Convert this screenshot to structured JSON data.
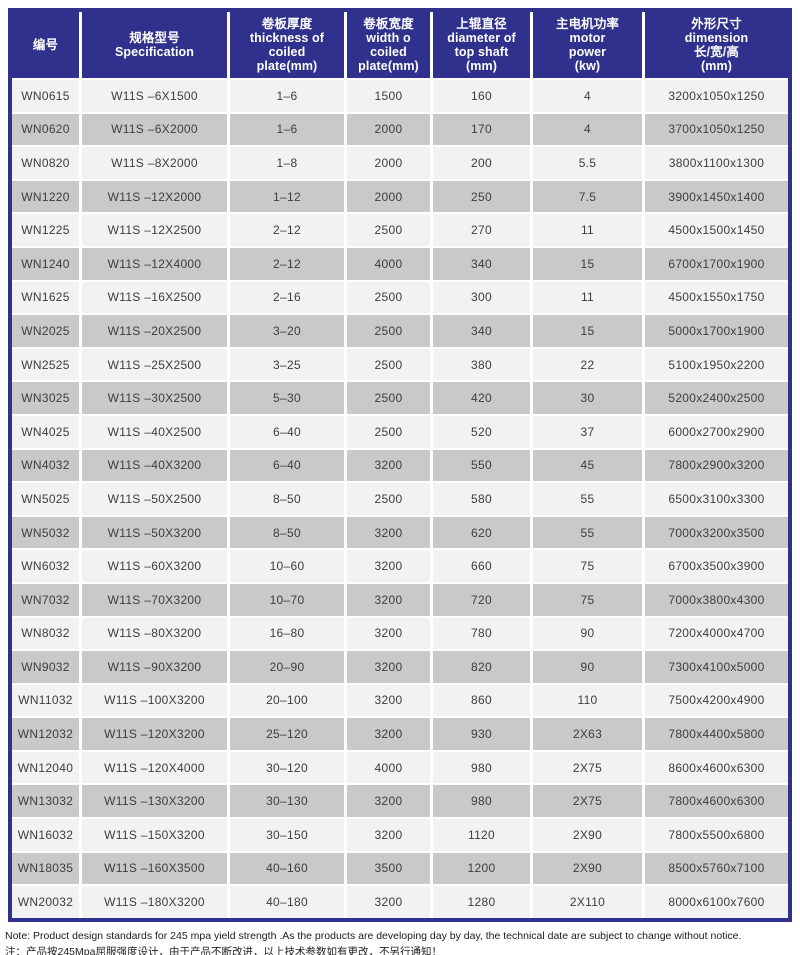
{
  "table": {
    "columns": [
      {
        "key": "id",
        "label": "编号"
      },
      {
        "key": "spec",
        "label": "规格型号\nSpecification"
      },
      {
        "key": "thickness",
        "label": "卷板厚度\nthickness of\ncoiled\nplate(mm)"
      },
      {
        "key": "width",
        "label": "卷板宽度\nwidth o\ncoiled\nplate(mm)"
      },
      {
        "key": "diameter",
        "label": "上辊直径\ndiameter of\ntop shaft\n(mm)"
      },
      {
        "key": "power",
        "label": "主电机功率\nmotor\npower\n(kw)"
      },
      {
        "key": "dimension",
        "label": "外形尺寸\ndimension\n长/宽/高\n(mm)"
      }
    ],
    "rows": [
      [
        "WN0615",
        "W11S –6X1500",
        "1–6",
        "1500",
        "160",
        "4",
        "3200x1050x1250"
      ],
      [
        "WN0620",
        "W11S –6X2000",
        "1–6",
        "2000",
        "170",
        "4",
        "3700x1050x1250"
      ],
      [
        "WN0820",
        "W11S –8X2000",
        "1–8",
        "2000",
        "200",
        "5.5",
        "3800x1100x1300"
      ],
      [
        "WN1220",
        "W11S –12X2000",
        "1–12",
        "2000",
        "250",
        "7.5",
        "3900x1450x1400"
      ],
      [
        "WN1225",
        "W11S –12X2500",
        "2–12",
        "2500",
        "270",
        "11",
        "4500x1500x1450"
      ],
      [
        "WN1240",
        "W11S –12X4000",
        "2–12",
        "4000",
        "340",
        "15",
        "6700x1700x1900"
      ],
      [
        "WN1625",
        "W11S –16X2500",
        "2–16",
        "2500",
        "300",
        "11",
        "4500x1550x1750"
      ],
      [
        "WN2025",
        "W11S –20X2500",
        "3–20",
        "2500",
        "340",
        "15",
        "5000x1700x1900"
      ],
      [
        "WN2525",
        "W11S –25X2500",
        "3–25",
        "2500",
        "380",
        "22",
        "5100x1950x2200"
      ],
      [
        "WN3025",
        "W11S –30X2500",
        "5–30",
        "2500",
        "420",
        "30",
        "5200x2400x2500"
      ],
      [
        "WN4025",
        "W11S –40X2500",
        "6–40",
        "2500",
        "520",
        "37",
        "6000x2700x2900"
      ],
      [
        "WN4032",
        "W11S –40X3200",
        "6–40",
        "3200",
        "550",
        "45",
        "7800x2900x3200"
      ],
      [
        "WN5025",
        "W11S –50X2500",
        "8–50",
        "2500",
        "580",
        "55",
        "6500x3100x3300"
      ],
      [
        "WN5032",
        "W11S –50X3200",
        "8–50",
        "3200",
        "620",
        "55",
        "7000x3200x3500"
      ],
      [
        "WN6032",
        "W11S –60X3200",
        "10–60",
        "3200",
        "660",
        "75",
        "6700x3500x3900"
      ],
      [
        "WN7032",
        "W11S –70X3200",
        "10–70",
        "3200",
        "720",
        "75",
        "7000x3800x4300"
      ],
      [
        "WN8032",
        "W11S –80X3200",
        "16–80",
        "3200",
        "780",
        "90",
        "7200x4000x4700"
      ],
      [
        "WN9032",
        "W11S –90X3200",
        "20–90",
        "3200",
        "820",
        "90",
        "7300x4100x5000"
      ],
      [
        "WN11032",
        "W11S –100X3200",
        "20–100",
        "3200",
        "860",
        "110",
        "7500x4200x4900"
      ],
      [
        "WN12032",
        "W11S –120X3200",
        "25–120",
        "3200",
        "930",
        "2X63",
        "7800x4400x5800"
      ],
      [
        "WN12040",
        "W11S –120X4000",
        "30–120",
        "4000",
        "980",
        "2X75",
        "8600x4600x6300"
      ],
      [
        "WN13032",
        "W11S –130X3200",
        "30–130",
        "3200",
        "980",
        "2X75",
        "7800x4600x6300"
      ],
      [
        "WN16032",
        "W11S –150X3200",
        "30–150",
        "3200",
        "1120",
        "2X90",
        "7800x5500x6800"
      ],
      [
        "WN18035",
        "W11S –160X3500",
        "40–160",
        "3500",
        "1200",
        "2X90",
        "8500x5760x7100"
      ],
      [
        "WN20032",
        "W11S –180X3200",
        "40–180",
        "3200",
        "1280",
        "2X110",
        "8000x6100x7600"
      ]
    ]
  },
  "notes": {
    "en": "Note: Product design standards for 245 mpa yield strength .As the products are developing day by day, the technical date are subject to change without notice.",
    "zh": "注：产品按245Mpa屈服强度设计，由于产品不断改进，以上技术参数如有更改，不另行通知！"
  },
  "colors": {
    "header_bg": "#30318c",
    "border": "#30318c",
    "row_light": "#f2f2f2",
    "row_dark": "#c9c9c9",
    "body_text": "#3d3d3d"
  }
}
